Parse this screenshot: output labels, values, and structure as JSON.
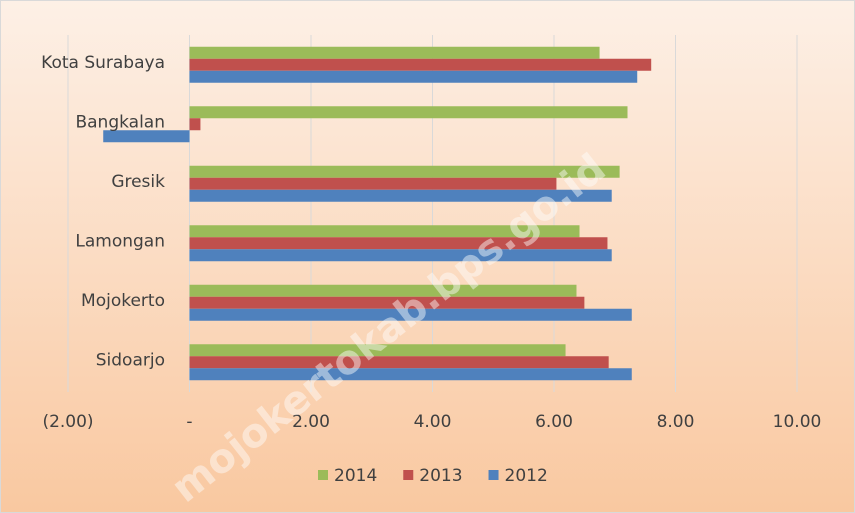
{
  "chart_data": {
    "type": "bar",
    "orientation": "horizontal",
    "categories": [
      "Kota Surabaya",
      "Bangkalan",
      "Gresik",
      "Lamongan",
      "Mojokerto",
      "Sidoarjo"
    ],
    "series": [
      {
        "name": "2014",
        "color": "#9bbb59",
        "values": [
          6.75,
          7.21,
          7.08,
          6.42,
          6.37,
          6.19
        ]
      },
      {
        "name": "2013",
        "color": "#c0504d",
        "values": [
          7.6,
          0.18,
          6.04,
          6.88,
          6.5,
          6.9
        ]
      },
      {
        "name": "2012",
        "color": "#4f81bd",
        "values": [
          7.37,
          -1.42,
          6.95,
          6.95,
          7.28,
          7.28
        ]
      }
    ],
    "xlim": [
      -2,
      10
    ],
    "xticks": [
      {
        "value": -2,
        "label": "(2.00)"
      },
      {
        "value": 0,
        "label": "-"
      },
      {
        "value": 2,
        "label": "2.00"
      },
      {
        "value": 4,
        "label": "4.00"
      },
      {
        "value": 6,
        "label": "6.00"
      },
      {
        "value": 8,
        "label": "8.00"
      },
      {
        "value": 10,
        "label": "10.00"
      }
    ],
    "grid": true,
    "legend": "bottom",
    "watermark": "mojokertokab.bps.go.id"
  }
}
